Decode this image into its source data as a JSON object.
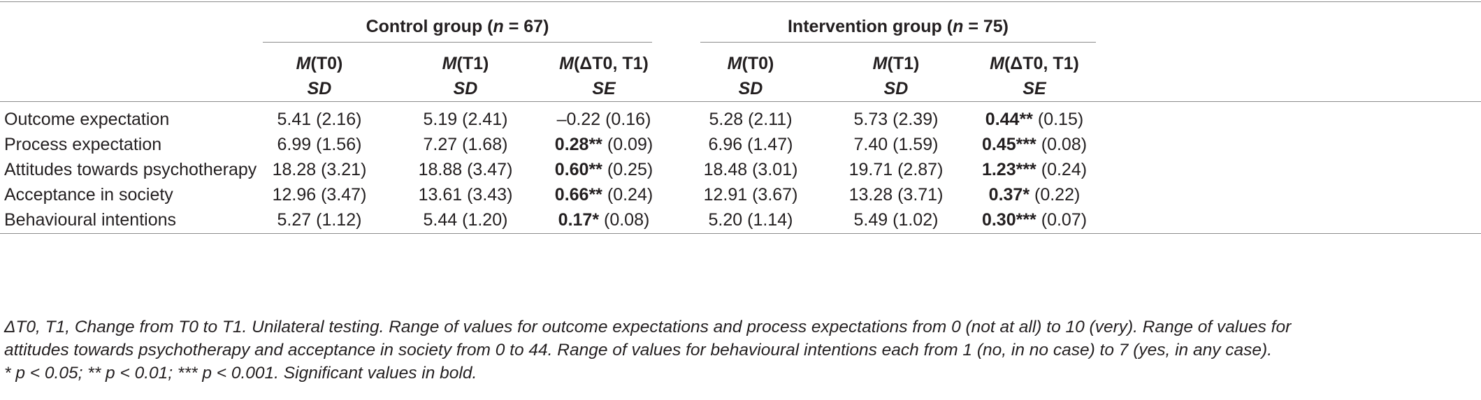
{
  "groups": {
    "control": {
      "label_pre": "Control group (",
      "n_symbol": "n",
      "label_post": " = 67)"
    },
    "intervention": {
      "label_pre": "Intervention group (",
      "n_symbol": "n",
      "label_post": " = 75)"
    }
  },
  "columns": [
    {
      "m": "M",
      "line1": "(T0)",
      "line2": "SD"
    },
    {
      "m": "M",
      "line1": "(T1)",
      "line2": "SD"
    },
    {
      "m": "M",
      "line1": "(ΔT0, T1)",
      "line2": "SE"
    },
    {
      "m": "M",
      "line1": "(T0)",
      "line2": "SD"
    },
    {
      "m": "M",
      "line1": "(T1)",
      "line2": "SD"
    },
    {
      "m": "M",
      "line1": "(ΔT0, T1)",
      "line2": "SE"
    }
  ],
  "rows": [
    {
      "label": "Outcome expectation",
      "c": [
        {
          "v": "5.41 (2.16)"
        },
        {
          "v": "5.19 (2.41)"
        },
        {
          "v": "–0.22 (0.16)"
        },
        {
          "v": "5.28 (2.11)"
        },
        {
          "v": "5.73 (2.39)"
        },
        {
          "b": "0.44**",
          "v": " (0.15)"
        }
      ]
    },
    {
      "label": "Process expectation",
      "c": [
        {
          "v": "6.99 (1.56)"
        },
        {
          "v": "7.27 (1.68)"
        },
        {
          "b": "0.28**",
          "v": " (0.09)"
        },
        {
          "v": "6.96 (1.47)"
        },
        {
          "v": "7.40 (1.59)"
        },
        {
          "b": "0.45***",
          "v": " (0.08)"
        }
      ]
    },
    {
      "label": "Attitudes towards psychotherapy",
      "c": [
        {
          "v": "18.28 (3.21)"
        },
        {
          "v": "18.88 (3.47)"
        },
        {
          "b": "0.60**",
          "v": " (0.25)"
        },
        {
          "v": "18.48 (3.01)"
        },
        {
          "v": "19.71 (2.87)"
        },
        {
          "b": "1.23***",
          "v": " (0.24)"
        }
      ]
    },
    {
      "label": "Acceptance in society",
      "c": [
        {
          "v": "12.96 (3.47)"
        },
        {
          "v": "13.61 (3.43)"
        },
        {
          "b": "0.66**",
          "v": " (0.24)"
        },
        {
          "v": "12.91 (3.67)"
        },
        {
          "v": "13.28 (3.71)"
        },
        {
          "b": "0.37*",
          "v": " (0.22)"
        }
      ]
    },
    {
      "label": "Behavioural intentions",
      "c": [
        {
          "v": "5.27 (1.12)"
        },
        {
          "v": "5.44 (1.20)"
        },
        {
          "b": "0.17*",
          "v": " (0.08)"
        },
        {
          "v": "5.20 (1.14)"
        },
        {
          "v": "5.49 (1.02)"
        },
        {
          "b": "0.30***",
          "v": " (0.07)"
        }
      ]
    }
  ],
  "footnote": {
    "line1": "ΔT0, T1, Change from T0 to T1. Unilateral testing. Range of values for outcome expectations and process expectations from 0 (not at all) to 10 (very). Range of values for",
    "line2": "attitudes towards psychotherapy and acceptance in society from 0 to 44. Range of values for behavioural intentions each from 1 (no, in no case) to 7 (yes, in any case).",
    "line3": "* p < 0.05; ** p < 0.01; *** p < 0.001. Significant values in bold."
  }
}
